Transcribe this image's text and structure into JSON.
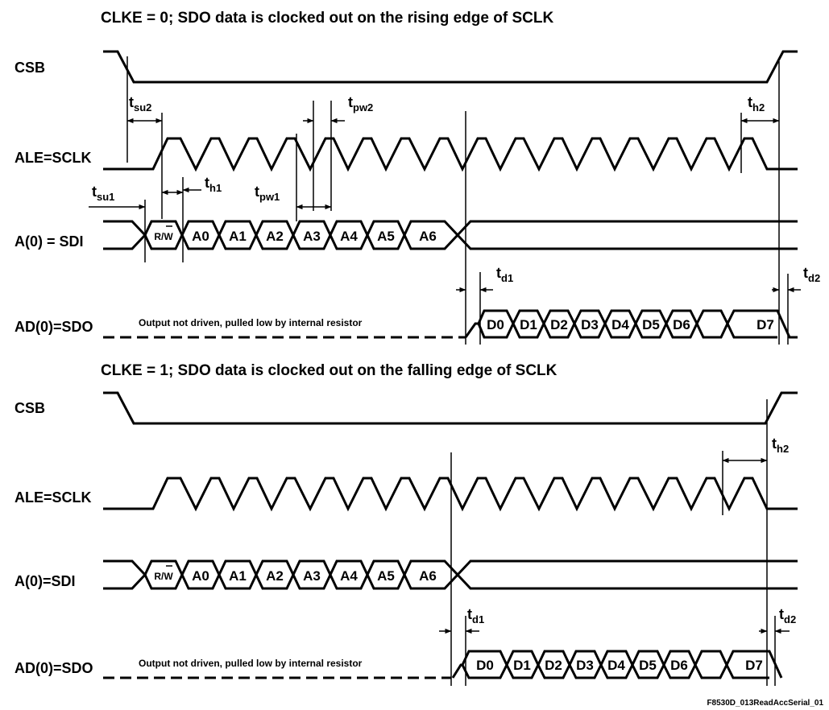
{
  "diagrams": [
    {
      "title": "CLKE = 0; SDO data is clocked out on the rising edge of SCLK",
      "signals": {
        "csb": "CSB",
        "sclk": "ALE=SCLK",
        "sdi": "A(0) = SDI",
        "sdo": "AD(0)=SDO"
      },
      "note": "Output not driven, pulled low by internal resistor",
      "timing": [
        {
          "key": "tsu2",
          "base": "t",
          "sub": "su2"
        },
        {
          "key": "th2",
          "base": "t",
          "sub": "h2"
        },
        {
          "key": "tpw2",
          "base": "t",
          "sub": "pw2"
        },
        {
          "key": "tsu1",
          "base": "t",
          "sub": "su1"
        },
        {
          "key": "th1",
          "base": "t",
          "sub": "h1"
        },
        {
          "key": "tpw1",
          "base": "t",
          "sub": "pw1"
        },
        {
          "key": "td1",
          "base": "t",
          "sub": "d1"
        },
        {
          "key": "td2",
          "base": "t",
          "sub": "d2"
        }
      ]
    },
    {
      "title": "CLKE = 1; SDO data is clocked out on the falling edge of SCLK",
      "signals": {
        "csb": "CSB",
        "sclk": "ALE=SCLK",
        "sdi": "A(0)=SDI",
        "sdo": "AD(0)=SDO"
      },
      "note": "Output not driven, pulled low by internal resistor",
      "timing": [
        {
          "key": "th2",
          "base": "t",
          "sub": "h2"
        },
        {
          "key": "td1",
          "base": "t",
          "sub": "d1"
        },
        {
          "key": "td2",
          "base": "t",
          "sub": "d2"
        }
      ]
    }
  ],
  "address_bits": [
    "R/W",
    "A0",
    "A1",
    "A2",
    "A3",
    "A4",
    "A5",
    "A6"
  ],
  "data_bits": [
    "D0",
    "D1",
    "D2",
    "D3",
    "D4",
    "D5",
    "D6",
    "D7"
  ],
  "figure_id": "F8530D_013ReadAccSerial_01"
}
